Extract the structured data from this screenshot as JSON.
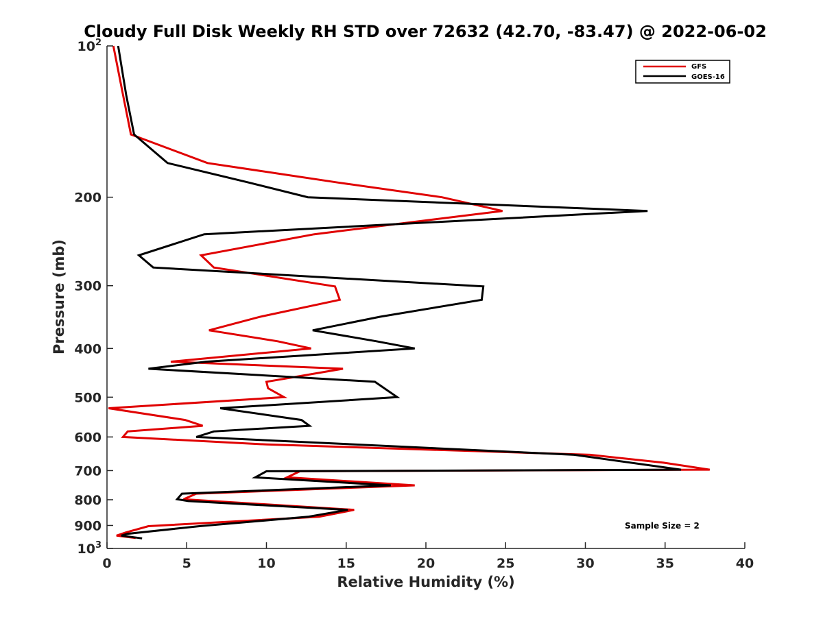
{
  "chart_data": {
    "type": "line",
    "title": "Cloudy Full Disk Weekly RH STD over 72632 (42.70, -83.47) @ 2022-06-02",
    "xlabel": "Relative Humidity (%)",
    "ylabel": "Pressure (mb)",
    "xlim": [
      0,
      40
    ],
    "ylim": [
      100,
      1000
    ],
    "y_scale": "log",
    "y_reversed": true,
    "x_ticks": [
      0,
      5,
      10,
      15,
      20,
      25,
      30,
      35,
      40
    ],
    "x_tick_labels": [
      "0",
      "5",
      "10",
      "15",
      "20",
      "25",
      "30",
      "35",
      "40"
    ],
    "y_ticks": [
      {
        "value": 100,
        "base": "10",
        "exp": "2"
      },
      {
        "value": 200,
        "label": "200"
      },
      {
        "value": 300,
        "label": "300"
      },
      {
        "value": 400,
        "label": "400"
      },
      {
        "value": 500,
        "label": "500"
      },
      {
        "value": 600,
        "label": "600"
      },
      {
        "value": 700,
        "label": "700"
      },
      {
        "value": 800,
        "label": "800"
      },
      {
        "value": 900,
        "label": "900"
      },
      {
        "value": 1000,
        "base": "10",
        "exp": "3"
      }
    ],
    "grid": false,
    "legend_position": "top-right",
    "annotation": "Sample Size = 2",
    "series": [
      {
        "name": "GFS",
        "color": "#e00000",
        "points": [
          [
            0.4,
            100
          ],
          [
            1.0,
            125
          ],
          [
            1.5,
            150
          ],
          [
            6.3,
            171
          ],
          [
            14.5,
            187
          ],
          [
            21.0,
            200
          ],
          [
            24.8,
            213
          ],
          [
            13.0,
            237
          ],
          [
            5.9,
            261
          ],
          [
            6.7,
            276
          ],
          [
            14.3,
            301
          ],
          [
            14.6,
            320
          ],
          [
            9.6,
            346
          ],
          [
            6.4,
            368
          ],
          [
            10.7,
            387
          ],
          [
            12.8,
            400
          ],
          [
            4.0,
            425
          ],
          [
            14.8,
            439
          ],
          [
            10.0,
            466
          ],
          [
            10.1,
            480
          ],
          [
            11.1,
            500
          ],
          [
            0.1,
            526
          ],
          [
            4.9,
            555
          ],
          [
            6.0,
            570
          ],
          [
            1.3,
            585
          ],
          [
            1.0,
            600
          ],
          [
            10.0,
            621
          ],
          [
            30.3,
            651
          ],
          [
            34.9,
            675
          ],
          [
            37.8,
            697
          ],
          [
            12.1,
            702
          ],
          [
            11.3,
            722
          ],
          [
            19.3,
            749
          ],
          [
            5.6,
            778
          ],
          [
            4.8,
            798
          ],
          [
            15.5,
            838
          ],
          [
            13.3,
            865
          ],
          [
            2.6,
            903
          ],
          [
            1.2,
            929
          ],
          [
            0.6,
            943
          ],
          [
            1.8,
            953
          ]
        ]
      },
      {
        "name": "GOES-16",
        "color": "#000000",
        "points": [
          [
            0.7,
            100
          ],
          [
            1.2,
            125
          ],
          [
            1.7,
            150
          ],
          [
            3.8,
            171
          ],
          [
            8.9,
            187
          ],
          [
            12.6,
            200
          ],
          [
            33.9,
            213
          ],
          [
            6.1,
            237
          ],
          [
            2.0,
            261
          ],
          [
            2.9,
            276
          ],
          [
            23.6,
            301
          ],
          [
            23.5,
            320
          ],
          [
            17.1,
            346
          ],
          [
            12.9,
            368
          ],
          [
            16.9,
            387
          ],
          [
            19.3,
            400
          ],
          [
            6.2,
            425
          ],
          [
            2.6,
            439
          ],
          [
            16.8,
            466
          ],
          [
            18.2,
            500
          ],
          [
            7.1,
            526
          ],
          [
            12.2,
            555
          ],
          [
            12.7,
            570
          ],
          [
            6.7,
            585
          ],
          [
            5.6,
            600
          ],
          [
            29.3,
            651
          ],
          [
            36.0,
            697
          ],
          [
            10.0,
            702
          ],
          [
            9.3,
            722
          ],
          [
            17.8,
            749
          ],
          [
            4.7,
            778
          ],
          [
            4.4,
            798
          ],
          [
            5.1,
            805
          ],
          [
            15.1,
            838
          ],
          [
            12.6,
            865
          ],
          [
            5.8,
            903
          ],
          [
            1.3,
            935
          ],
          [
            0.9,
            943
          ],
          [
            2.2,
            955
          ]
        ]
      }
    ]
  }
}
